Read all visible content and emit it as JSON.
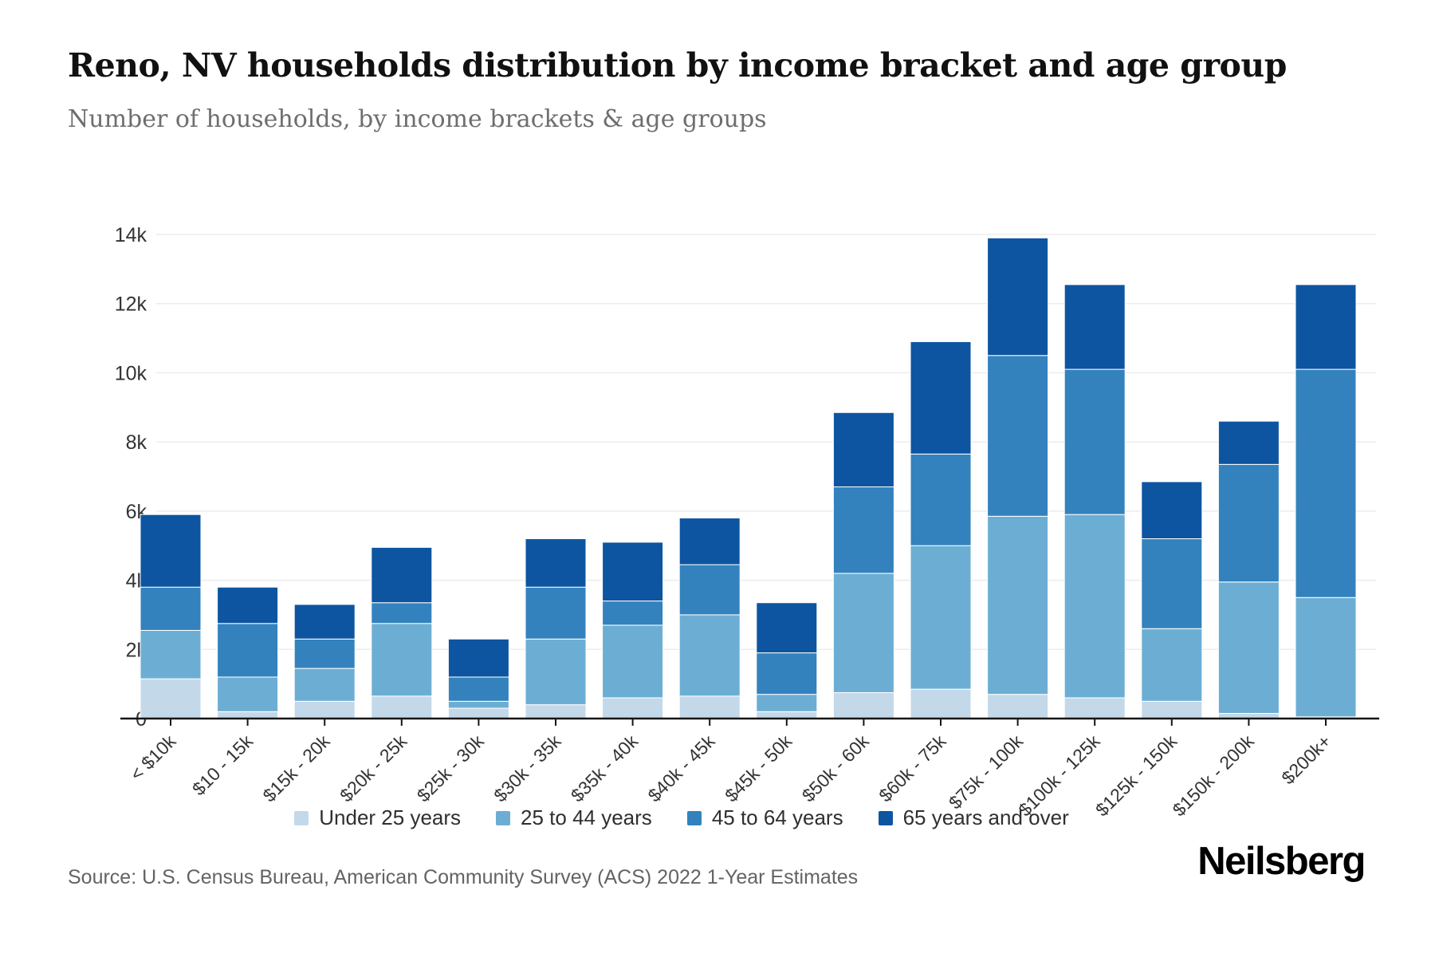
{
  "header": {
    "title": "Reno, NV households distribution by income bracket and age group",
    "subtitle": "Number of households, by income brackets & age groups"
  },
  "footer": {
    "source": "Source: U.S. Census Bureau, American Community Survey (ACS) 2022 1-Year Estimates",
    "brand": "Neilsberg"
  },
  "chart_data": {
    "type": "bar",
    "stacked": true,
    "title": "Reno, NV households distribution by income bracket and age group",
    "xlabel": "",
    "ylabel": "",
    "ylim": [
      0,
      14000
    ],
    "yticks": [
      0,
      2000,
      4000,
      6000,
      8000,
      10000,
      12000,
      14000
    ],
    "ytick_labels": [
      "0",
      "2k",
      "4k",
      "6k",
      "8k",
      "10k",
      "12k",
      "14k"
    ],
    "grid": true,
    "legend_position": "bottom",
    "categories": [
      "< $10k",
      "$10 - 15k",
      "$15k - 20k",
      "$20k - 25k",
      "$25k - 30k",
      "$30k - 35k",
      "$35k - 40k",
      "$40k - 45k",
      "$45k - 50k",
      "$50k - 60k",
      "$60k - 75k",
      "$75k - 100k",
      "$100k - 125k",
      "$125k - 150k",
      "$150k - 200k",
      "$200k+"
    ],
    "series": [
      {
        "name": "Under 25 years",
        "color": "#c3d9ea",
        "values": [
          1150,
          200,
          500,
          650,
          300,
          400,
          600,
          650,
          200,
          750,
          850,
          700,
          600,
          500,
          150,
          50
        ]
      },
      {
        "name": "25 to 44 years",
        "color": "#6caed3",
        "values": [
          1400,
          1000,
          950,
          2100,
          200,
          1900,
          2100,
          2350,
          500,
          3450,
          4150,
          5150,
          5300,
          2100,
          3800,
          3450
        ]
      },
      {
        "name": "45 to 64 years",
        "color": "#3382bd",
        "values": [
          1250,
          1550,
          850,
          600,
          700,
          1500,
          700,
          1450,
          1200,
          2500,
          2650,
          4650,
          4200,
          2600,
          3400,
          6600
        ]
      },
      {
        "name": "65 years and over",
        "color": "#0d55a1",
        "values": [
          2100,
          1050,
          1000,
          1600,
          1100,
          1400,
          1700,
          1350,
          1450,
          2150,
          3250,
          3400,
          2450,
          1650,
          1250,
          2450
        ]
      }
    ]
  }
}
